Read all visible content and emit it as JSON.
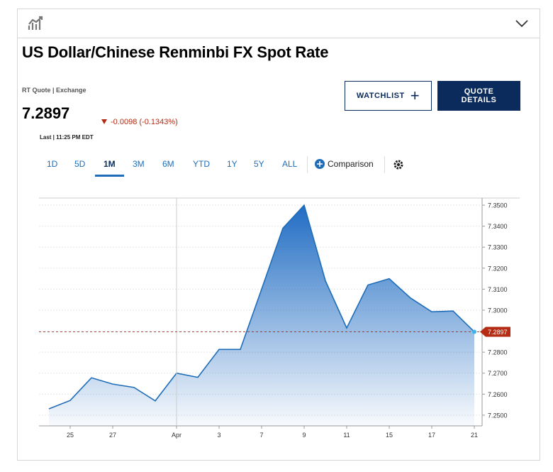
{
  "header": {
    "title": "US Dollar/Chinese Renminbi FX Spot Rate",
    "source": "RT Quote | Exchange",
    "price": "7.2897",
    "change": "-0.0098 (-0.1343%)",
    "last_time": "Last | 11:25 PM EDT",
    "watchlist": "WATCHLIST",
    "quote_details": "QUOTE DETAILS"
  },
  "tabs": [
    "1D",
    "5D",
    "1M",
    "3M",
    "6M",
    "YTD",
    "1Y",
    "5Y",
    "ALL"
  ],
  "selected_tab": 2,
  "comparison": "Comparison",
  "chart_data": {
    "type": "area",
    "color": "#1f6db8",
    "categories": [
      null,
      "25",
      null,
      "27",
      null,
      null,
      "Apr",
      null,
      "3",
      null,
      "7",
      null,
      "9",
      null,
      "11",
      null,
      "15",
      null,
      "17",
      null,
      "21"
    ],
    "values": [
      7.253,
      7.257,
      7.2678,
      7.2648,
      7.2632,
      7.2568,
      7.27,
      7.268,
      7.2813,
      7.2813,
      7.31,
      7.339,
      7.35,
      7.314,
      7.2915,
      7.312,
      7.315,
      7.3058,
      7.2992,
      7.2996,
      7.2897
    ],
    "ylim": [
      7.2449,
      7.3534
    ],
    "yticks": [
      {
        "value": 7.25,
        "label": "7.2500"
      },
      {
        "value": 7.26,
        "label": "7.2600"
      },
      {
        "value": 7.27,
        "label": "7.2700"
      },
      {
        "value": 7.28,
        "label": "7.2800"
      },
      {
        "value": 7.29,
        "label": "7.2900"
      },
      {
        "value": 7.3,
        "label": "7.3000"
      },
      {
        "value": 7.31,
        "label": "7.3100"
      },
      {
        "value": 7.32,
        "label": "7.3200"
      },
      {
        "value": 7.33,
        "label": "7.3300"
      },
      {
        "value": 7.34,
        "label": "7.3400"
      },
      {
        "value": 7.35,
        "label": "7.3500"
      }
    ],
    "reference_line": {
      "value": 7.2897,
      "label": "7.2897",
      "color": "#b52b14"
    },
    "grid": true
  }
}
